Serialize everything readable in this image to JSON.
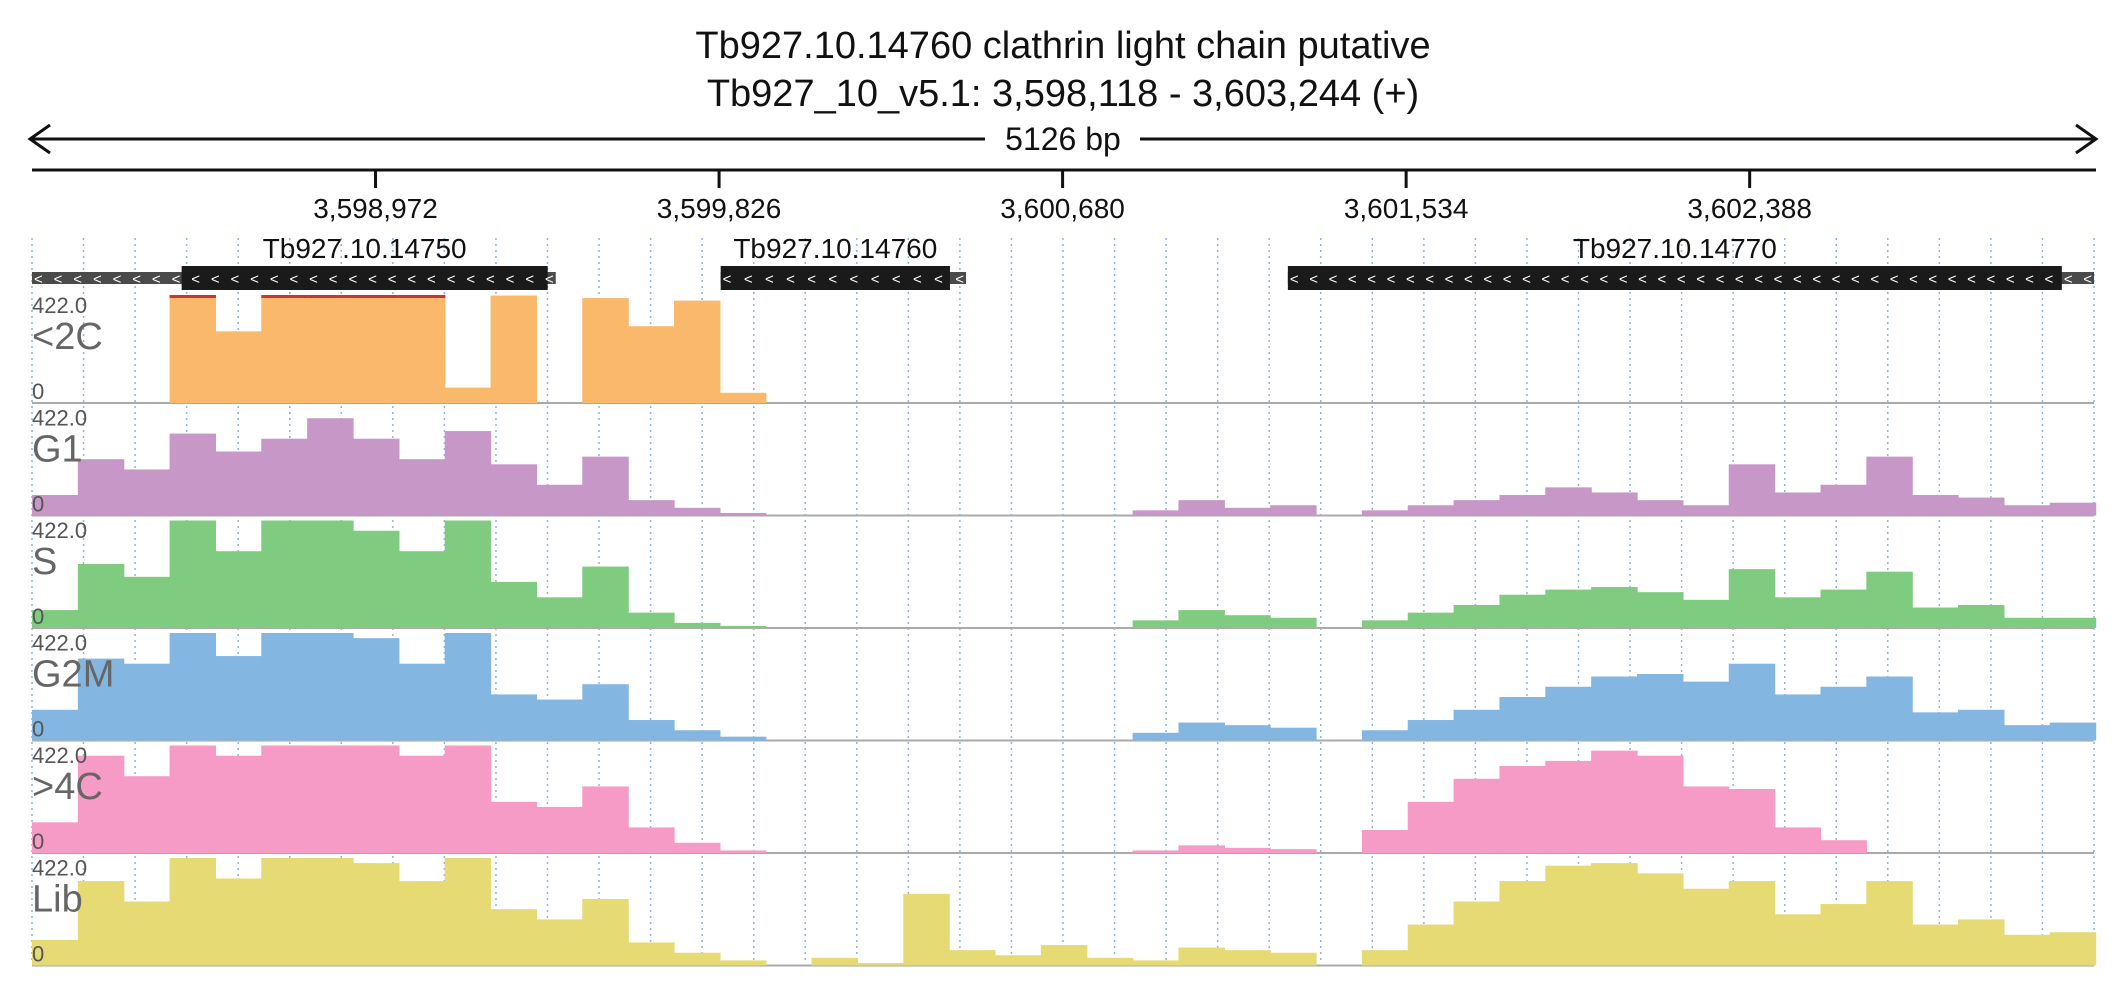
{
  "chart_data": {
    "type": "area",
    "title": "Tb927.10.14760  clathrin light chain  putative",
    "subtitle": "Tb927_10_v5.1: 3,598,118 - 3,603,244 (+)",
    "span_label": "5126 bp",
    "region": {
      "start": 3598118,
      "end": 3603244
    },
    "x_ticks": [
      {
        "value": 3598972,
        "label": "3,598,972"
      },
      {
        "value": 3599826,
        "label": "3,599,826"
      },
      {
        "value": 3600680,
        "label": "3,600,680"
      },
      {
        "value": 3601534,
        "label": "3,601,534"
      },
      {
        "value": 3602388,
        "label": "3,602,388"
      }
    ],
    "genes": [
      {
        "name": "Tb927.10.14750",
        "start": 3598490,
        "end": 3599400,
        "utr_start": 3598118,
        "utr_end": 3599420,
        "strand": "-"
      },
      {
        "name": "Tb927.10.14760",
        "start": 3599830,
        "end": 3600400,
        "utr_start": 3599830,
        "utr_end": 3600440,
        "strand": "-"
      },
      {
        "name": "Tb927.10.14770",
        "start": 3601240,
        "end": 3603164,
        "utr_start": 3601240,
        "utr_end": 3603244,
        "strand": "-"
      }
    ],
    "ylim": [
      0,
      422.0
    ],
    "y_max_label": "422.0",
    "y_min_label": "0",
    "x": [
      3598118,
      3598232,
      3598346,
      3598460,
      3598574,
      3598688,
      3598802,
      3598916,
      3599030,
      3599144,
      3599258,
      3599372,
      3599486,
      3599600,
      3599714,
      3599828,
      3599942,
      3600056,
      3600170,
      3600284,
      3600398,
      3600512,
      3600626,
      3600740,
      3600854,
      3600968,
      3601082,
      3601196,
      3601310,
      3601424,
      3601538,
      3601652,
      3601766,
      3601880,
      3601994,
      3602108,
      3602222,
      3602336,
      3602450,
      3602564,
      3602678,
      3602792,
      3602906,
      3603020,
      3603134
    ],
    "series": [
      {
        "name": "<2C",
        "color": "#f9b86a",
        "values": [
          0,
          0,
          0,
          422,
          280,
          422,
          422,
          422,
          422,
          60,
          420,
          0,
          410,
          300,
          400,
          40,
          0,
          0,
          0,
          0,
          0,
          0,
          0,
          0,
          0,
          0,
          0,
          0,
          0,
          0,
          0,
          0,
          0,
          0,
          0,
          0,
          0,
          0,
          0,
          0,
          0,
          0,
          0,
          0,
          0
        ]
      },
      {
        "name": "G1",
        "color": "#c797c7",
        "values": [
          80,
          220,
          180,
          320,
          250,
          300,
          380,
          300,
          220,
          330,
          200,
          120,
          230,
          60,
          30,
          10,
          0,
          0,
          0,
          0,
          0,
          0,
          0,
          0,
          20,
          60,
          30,
          40,
          0,
          20,
          40,
          60,
          80,
          110,
          90,
          60,
          40,
          200,
          90,
          120,
          230,
          80,
          70,
          40,
          50
        ]
      },
      {
        "name": "S",
        "color": "#7fcb7f",
        "values": [
          70,
          250,
          200,
          420,
          300,
          420,
          420,
          380,
          300,
          420,
          180,
          120,
          240,
          60,
          20,
          8,
          0,
          0,
          0,
          0,
          0,
          0,
          0,
          0,
          30,
          70,
          50,
          40,
          0,
          30,
          60,
          90,
          130,
          150,
          160,
          140,
          110,
          230,
          120,
          150,
          220,
          80,
          90,
          40,
          40
        ]
      },
      {
        "name": "G2M",
        "color": "#83b7e2",
        "values": [
          120,
          320,
          300,
          420,
          330,
          420,
          420,
          400,
          300,
          420,
          180,
          160,
          220,
          80,
          40,
          15,
          0,
          0,
          0,
          0,
          0,
          0,
          0,
          0,
          30,
          70,
          60,
          50,
          0,
          40,
          80,
          120,
          170,
          210,
          250,
          260,
          230,
          300,
          180,
          210,
          250,
          110,
          120,
          60,
          70
        ]
      },
      {
        "name": ">4C",
        "color": "#f59bc5",
        "values": [
          120,
          380,
          300,
          420,
          380,
          420,
          420,
          420,
          380,
          420,
          200,
          180,
          260,
          100,
          40,
          10,
          0,
          0,
          0,
          0,
          0,
          0,
          0,
          0,
          10,
          30,
          20,
          15,
          0,
          90,
          200,
          290,
          340,
          360,
          400,
          380,
          260,
          250,
          100,
          50,
          0,
          0,
          0,
          0,
          0
        ]
      },
      {
        "name": "Lib",
        "color": "#e5da74",
        "values": [
          100,
          330,
          250,
          420,
          340,
          420,
          420,
          400,
          330,
          420,
          220,
          180,
          260,
          90,
          50,
          20,
          0,
          30,
          10,
          280,
          60,
          40,
          80,
          30,
          20,
          70,
          60,
          50,
          0,
          60,
          160,
          250,
          330,
          390,
          400,
          360,
          300,
          330,
          200,
          240,
          330,
          160,
          180,
          120,
          130
        ]
      }
    ]
  }
}
